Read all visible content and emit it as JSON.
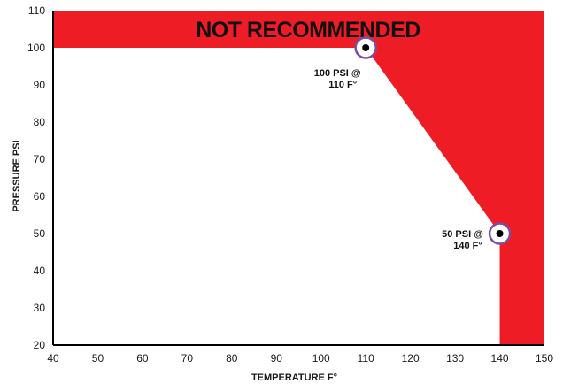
{
  "chart_data": {
    "type": "area",
    "xlabel": "TEMPERATURE F°",
    "ylabel": "PRESSURE PSI",
    "xlim": [
      40,
      150
    ],
    "ylim": [
      20,
      110
    ],
    "x_ticks": [
      "40",
      "50",
      "60",
      "70",
      "80",
      "90",
      "100",
      "110",
      "120",
      "130",
      "140",
      "150"
    ],
    "y_ticks": [
      "20",
      "30",
      "40",
      "50",
      "60",
      "70",
      "80",
      "90",
      "100",
      "110"
    ],
    "zone_label": "NOT RECOMMENDED",
    "zone_color": "#ee1c25",
    "boundary": [
      {
        "x": 40,
        "y": 100
      },
      {
        "x": 110,
        "y": 100
      },
      {
        "x": 140,
        "y": 50
      },
      {
        "x": 140,
        "y": 20
      }
    ],
    "markers": [
      {
        "x": 110,
        "y": 100,
        "label_line1": "100 PSI @",
        "label_line2": "110 F°"
      },
      {
        "x": 140,
        "y": 50,
        "label_line1": "50 PSI @",
        "label_line2": "140 F°"
      }
    ],
    "marker_ring_color": "#7b4fa0",
    "grid": false
  }
}
